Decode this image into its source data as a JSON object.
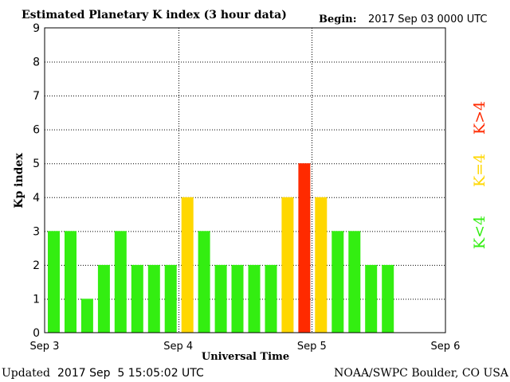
{
  "chart_data": {
    "type": "bar",
    "title": "Estimated Planetary K index (3 hour data)",
    "begin_label": "Begin:",
    "begin_value": "2017 Sep 03 0000 UTC",
    "xlabel": "Universal Time",
    "ylabel": "Kp index",
    "ylim": [
      0,
      9
    ],
    "yticks": [
      "0",
      "1",
      "2",
      "3",
      "4",
      "5",
      "6",
      "7",
      "8",
      "9"
    ],
    "xticks": [
      "Sep 3",
      "Sep 4",
      "Sep 5",
      "Sep 6"
    ],
    "slots_total": 24,
    "grid": true,
    "values": [
      3,
      3,
      1,
      2,
      3,
      2,
      2,
      2,
      4,
      3,
      2,
      2,
      2,
      2,
      4,
      5,
      4,
      3,
      3,
      2,
      2
    ],
    "legend": [
      {
        "label": "K>4",
        "color": "#ff2a00"
      },
      {
        "label": "K=4",
        "color": "#ffd700"
      },
      {
        "label": "K<4",
        "color": "#33ee11"
      }
    ],
    "colors": {
      "below": "#33ee11",
      "equal": "#ffd700",
      "above": "#ff2a00"
    }
  },
  "footer": {
    "updated_label": "Updated",
    "updated_value": "2017 Sep  5 15:05:02 UTC",
    "source": "NOAA/SWPC Boulder, CO USA"
  }
}
